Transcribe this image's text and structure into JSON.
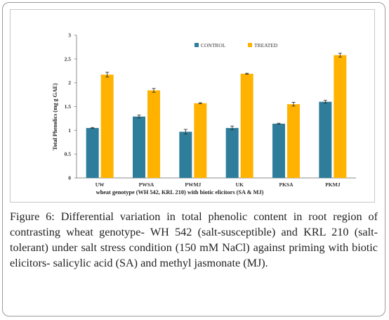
{
  "chart_data": {
    "type": "bar",
    "categories": [
      "UW",
      "PWSA",
      "PWMJ",
      "UK",
      "PKSA",
      "PKMJ"
    ],
    "series": [
      {
        "name": "CONTROL",
        "color": "#2e7e9b",
        "values": [
          1.05,
          1.29,
          0.97,
          1.05,
          1.14,
          1.6
        ],
        "errors": [
          0.01,
          0.03,
          0.05,
          0.04,
          0.01,
          0.03
        ]
      },
      {
        "name": "TREATED",
        "color": "#ffb300",
        "values": [
          2.17,
          1.84,
          1.57,
          2.19,
          1.55,
          2.58
        ],
        "errors": [
          0.05,
          0.04,
          0.01,
          0.01,
          0.04,
          0.04
        ]
      }
    ],
    "xlabel": "wheat genotype (WH 542, KRL 210) with biotic elicitors (SA & MJ)",
    "ylabel": "Total Phenolics (mg g GAE)",
    "ylim": [
      0,
      3
    ],
    "yticks": [
      "0",
      "0.5",
      "1",
      "1.5",
      "2",
      "2.5",
      "3"
    ],
    "legend_position": "top-right",
    "grid": false
  },
  "caption": {
    "label": "Figure 6:",
    "text": "Differential variation in total phenolic content in root region of contrasting wheat genotype- WH 542 (salt-susceptible) and KRL 210 (salt-tolerant) under salt stress condition (150 mM NaCl) against priming with biotic elicitors- salicylic acid (SA) and methyl jasmonate (MJ)."
  }
}
